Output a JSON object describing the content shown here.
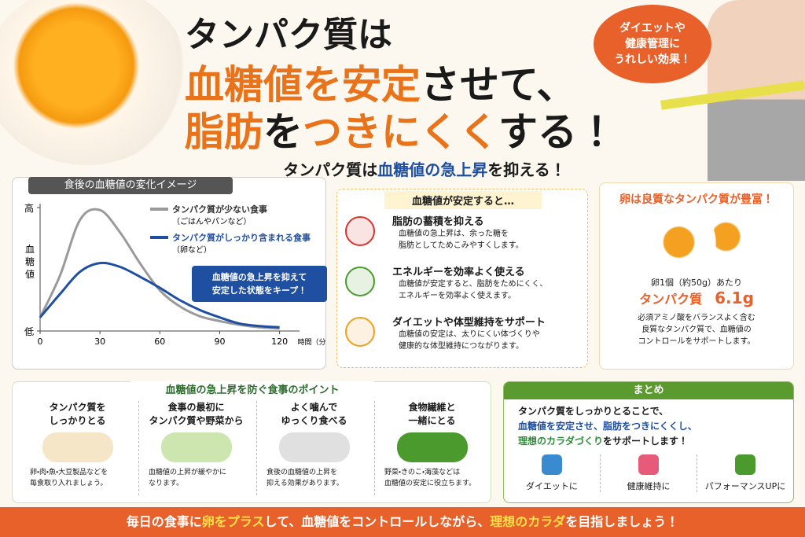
{
  "header": {
    "title_lines": [
      [
        {
          "text": "タンパク質は",
          "color": "#1a1a1a"
        }
      ],
      [
        {
          "text": "血糖値を安定",
          "color": "#e8731a"
        },
        {
          "text": "させて、",
          "color": "#1a1a1a"
        }
      ],
      [
        {
          "text": "脂肪",
          "color": "#e8731a"
        },
        {
          "text": "を",
          "color": "#1a1a1a"
        },
        {
          "text": "つきにくく",
          "color": "#e8731a"
        },
        {
          "text": "する！",
          "color": "#1a1a1a"
        }
      ]
    ],
    "bubble": [
      "ダイエットや",
      "健康管理に",
      "うれしい効果！"
    ],
    "subtitle": [
      {
        "text": "タンパク質は",
        "color": "#1a1a1a"
      },
      {
        "text": "血糖値の急上昇",
        "color": "#1f4fa0"
      },
      {
        "text": "を抑える！",
        "color": "#1a1a1a"
      }
    ]
  },
  "chart_data": {
    "type": "line",
    "title": "食後の血糖値の変化イメージ",
    "y_label": "血糖値",
    "x_label": "時間（分）",
    "x": [
      0,
      10,
      20,
      30,
      40,
      50,
      60,
      70,
      80,
      90,
      100,
      110,
      120
    ],
    "xlim": [
      0,
      130
    ],
    "xticks": [
      0,
      30,
      60,
      90,
      120
    ],
    "ylim": [
      0,
      100
    ],
    "yticks": [
      {
        "value": 0,
        "label": "低"
      },
      {
        "value": 100,
        "label": "高"
      }
    ],
    "series": [
      {
        "name": "タンパク質が少ない食事",
        "note": "（ごはんやパンなど）",
        "color": "#9a9a9a",
        "values": [
          11,
          45,
          90,
          98,
          80,
          55,
          33,
          20,
          12,
          8,
          5,
          3,
          2
        ]
      },
      {
        "name": "タンパク質がしっかり含まれる食事",
        "note": "（卵など）",
        "color": "#1f4fa0",
        "values": [
          11,
          30,
          48,
          55,
          52,
          44,
          35,
          25,
          17,
          11,
          6,
          4,
          3
        ]
      }
    ],
    "callout": [
      "血糖値の急上昇を抑えて",
      "安定した状態をキープ！"
    ]
  },
  "effects": {
    "title": "血糖値が安定すると…",
    "items": [
      {
        "title": "脂肪の蓄積を抑える",
        "desc": [
          "血糖値の急上昇は、余った糖を",
          "脂肪としてためこみやすくします。"
        ]
      },
      {
        "title": "エネルギーを効率よく使える",
        "desc": [
          "血糖値が安定すると、脂肪をためにくく、",
          "エネルギーを効率よく使えます。"
        ]
      },
      {
        "title": "ダイエットや体型維持をサポート",
        "desc": [
          "血糖値の安定は、太りにくい体づくりや",
          "健康的な体型維持につながります。"
        ]
      }
    ]
  },
  "egg": {
    "title": "卵は良質なタンパク質が豊富！",
    "per": "卵1個（約50g）あたり",
    "label": "タンパク質",
    "amount": "6.1g",
    "desc": [
      "必須アミノ酸をバランスよく含む",
      "良質なタンパク質で、血糖値の",
      "コントロールをサポートします。"
    ]
  },
  "tips": {
    "title": "血糖値の急上昇を防ぐ食事のポイント",
    "items": [
      {
        "title": [
          "タンパク質を",
          "しっかりとる"
        ],
        "desc": [
          "卵・肉・魚・大豆製品などを",
          "毎食取り入れましょう。"
        ]
      },
      {
        "title": [
          "食事の最初に",
          "タンパク質や野菜から"
        ],
        "desc": [
          "血糖値の上昇が緩やかに",
          "なります。"
        ]
      },
      {
        "title": [
          "よく噛んで",
          "ゆっくり食べる"
        ],
        "desc": [
          "食後の血糖値の上昇を",
          "抑える効果があります。"
        ]
      },
      {
        "title": [
          "食物繊維と",
          "一緒にとる"
        ],
        "desc": [
          "野菜・きのこ・海藻などは",
          "血糖値の安定に役立ちます。"
        ]
      }
    ]
  },
  "summary": {
    "title": "まとめ",
    "lines": [
      [
        {
          "text": "タンパク質をしっかりとることで、",
          "color": "#1a1a1a"
        }
      ],
      [
        {
          "text": "血糖値を安定させ、脂肪をつきにくくし、",
          "color": "#1f4fa0"
        }
      ],
      [
        {
          "text": "理想のカラダづくり",
          "color": "#2e8b3a"
        },
        {
          "text": "をサポートします！",
          "color": "#1a1a1a"
        }
      ]
    ],
    "icons": [
      "ダイエットに",
      "健康維持に",
      "パフォーマンスUPに"
    ]
  },
  "footer": [
    {
      "text": "毎日の食事に",
      "color": "#ffffff"
    },
    {
      "text": "卵をプラス",
      "color": "#ffe14a"
    },
    {
      "text": "して、血糖値をコントロールしながら、",
      "color": "#ffffff"
    },
    {
      "text": "理想のカラダ",
      "color": "#ffe14a"
    },
    {
      "text": "を目指しましょう！",
      "color": "#ffffff"
    }
  ]
}
